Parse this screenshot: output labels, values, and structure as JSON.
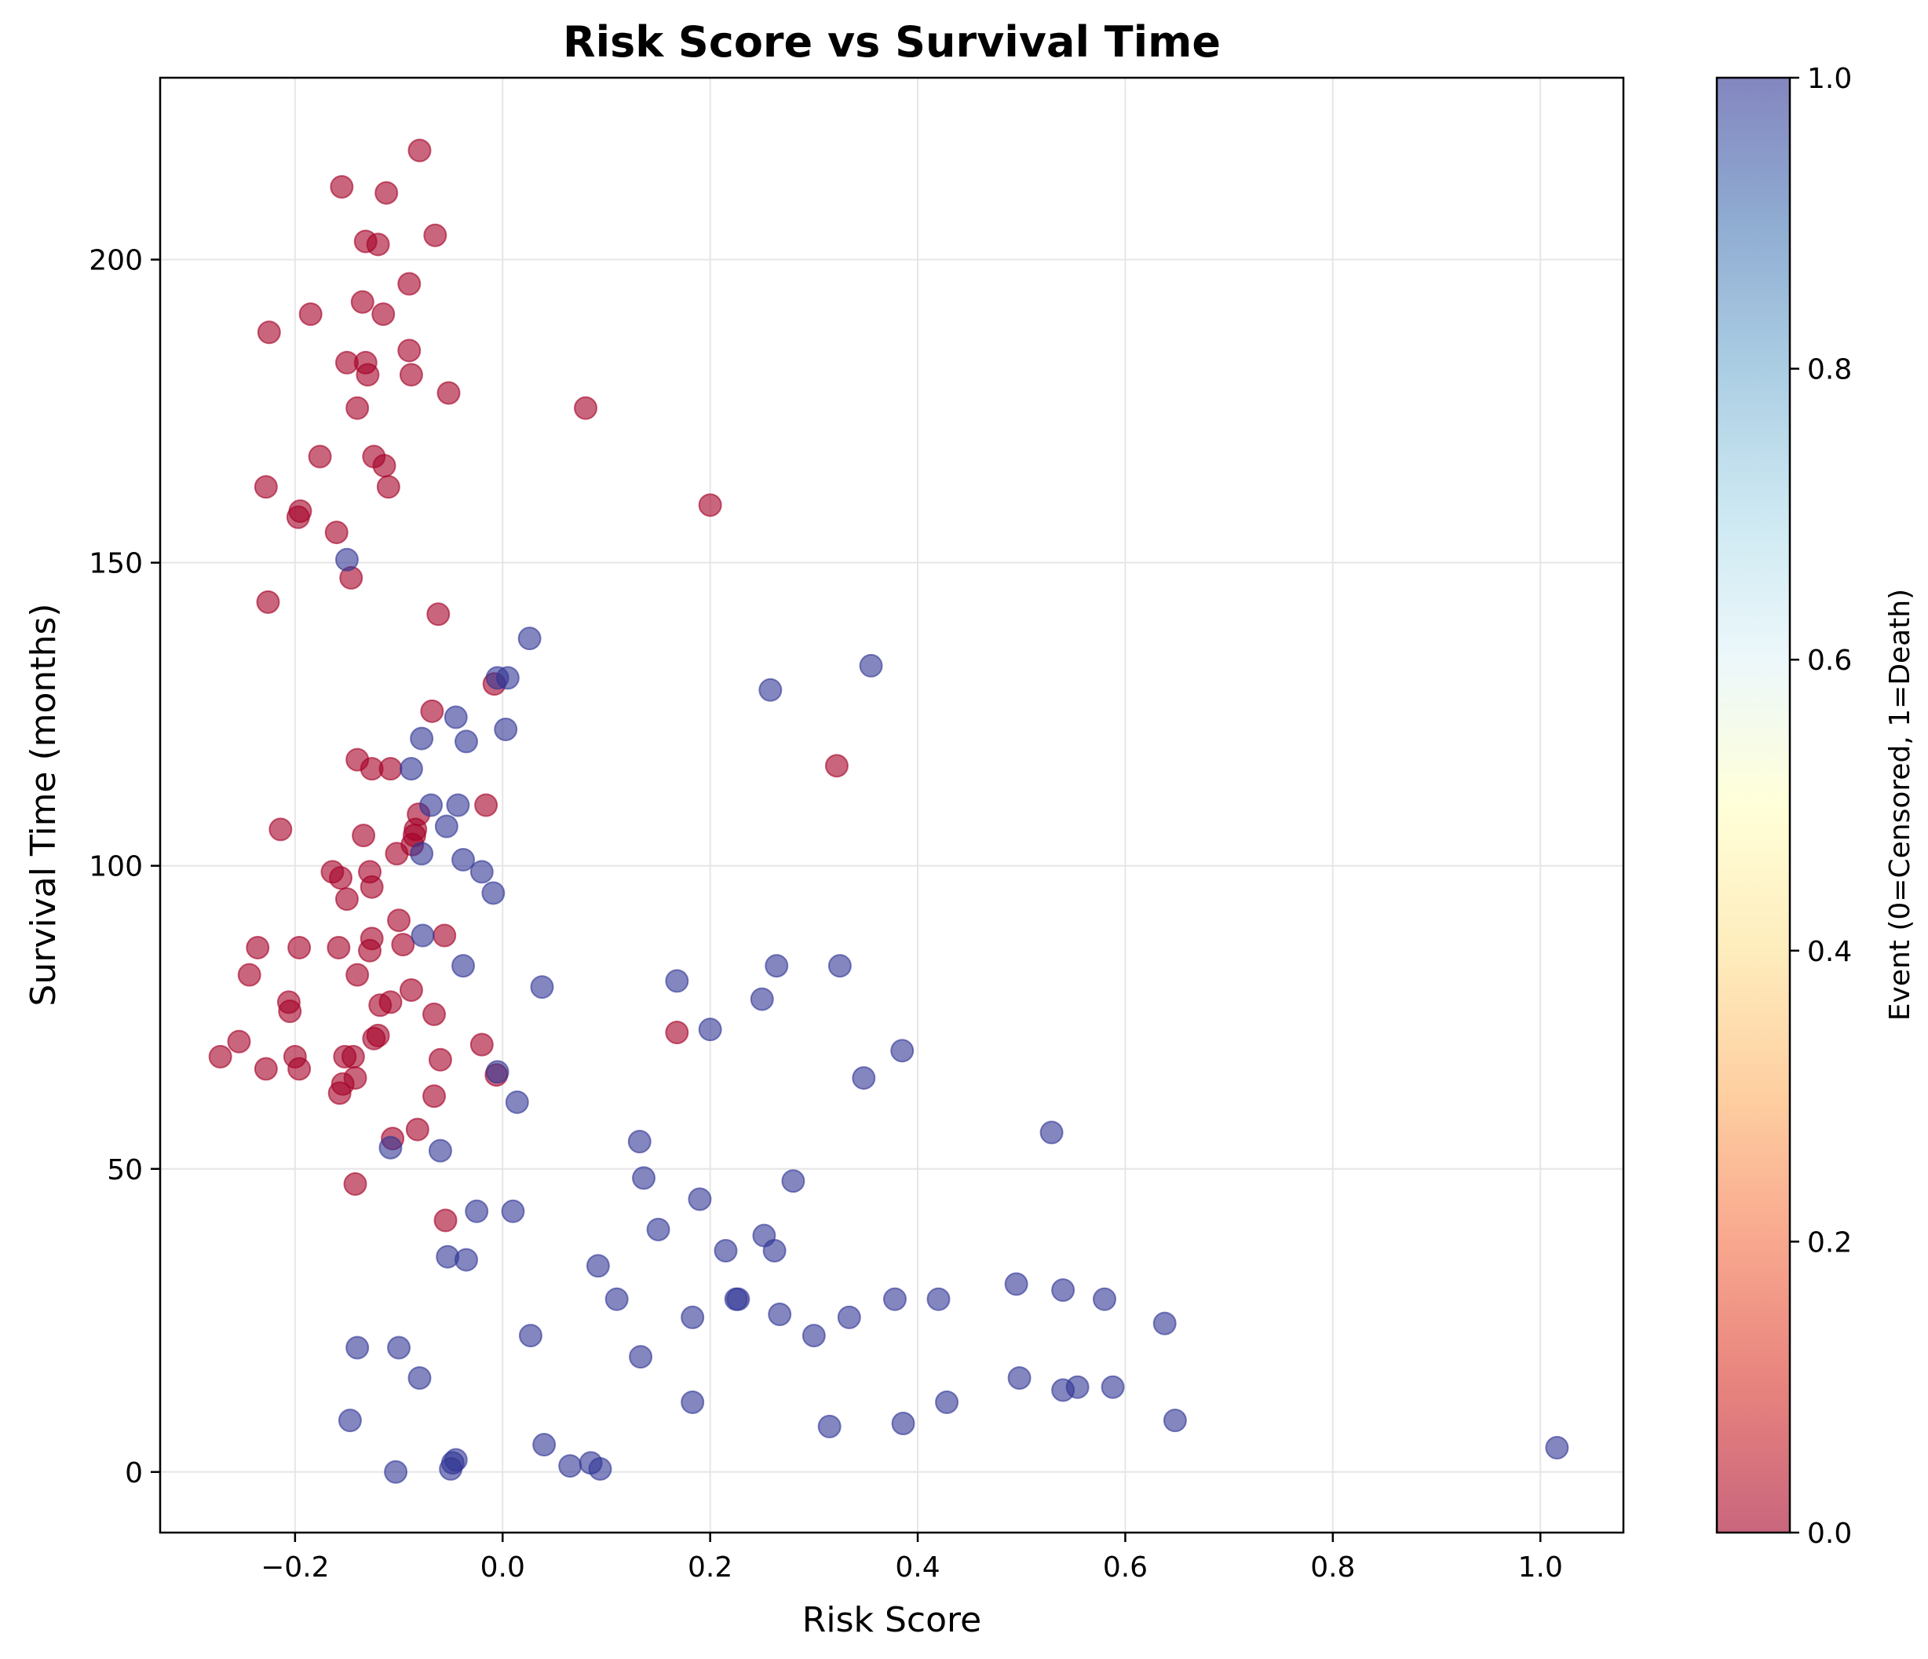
{
  "chart_data": {
    "type": "scatter",
    "title": "Risk Score vs Survival Time",
    "xlabel": "Risk Score",
    "ylabel": "Survival Time (months)",
    "xlim": [
      -0.33,
      1.08
    ],
    "ylim": [
      -10,
      230
    ],
    "grid": true,
    "xticks": [
      -0.2,
      0.0,
      0.2,
      0.4,
      0.6,
      0.8,
      1.0
    ],
    "xtick_labels": [
      "−0.2",
      "0.0",
      "0.2",
      "0.4",
      "0.6",
      "0.8",
      "1.0"
    ],
    "yticks": [
      0,
      50,
      100,
      150,
      200
    ],
    "ytick_labels": [
      "0",
      "50",
      "100",
      "150",
      "200"
    ],
    "colorbar": {
      "label": "Event (0=Censored, 1=Death)",
      "range": [
        0,
        1
      ],
      "ticks": [
        0.0,
        0.2,
        0.4,
        0.6,
        0.8,
        1.0
      ],
      "tick_labels": [
        "0.0",
        "0.2",
        "0.4",
        "0.6",
        "0.8",
        "1.0"
      ],
      "colormap": "RdYlBu",
      "alpha": 0.6,
      "stops": [
        "#a50026",
        "#d73027",
        "#f46d43",
        "#fdae61",
        "#fee090",
        "#ffffbf",
        "#e0f3f8",
        "#abd9e9",
        "#74add1",
        "#4575b4",
        "#313695"
      ]
    },
    "series": [
      {
        "name": "Censored",
        "event": 0,
        "color": "#a50026",
        "points": [
          [
            -0.08,
            218
          ],
          [
            -0.155,
            212
          ],
          [
            -0.112,
            211
          ],
          [
            -0.132,
            203
          ],
          [
            -0.12,
            202.5
          ],
          [
            -0.065,
            204
          ],
          [
            -0.09,
            196
          ],
          [
            -0.135,
            193
          ],
          [
            -0.115,
            191
          ],
          [
            -0.185,
            191
          ],
          [
            -0.225,
            188
          ],
          [
            -0.09,
            185
          ],
          [
            -0.15,
            183
          ],
          [
            -0.132,
            183
          ],
          [
            -0.13,
            181
          ],
          [
            -0.088,
            181
          ],
          [
            -0.052,
            178
          ],
          [
            -0.14,
            175.5
          ],
          [
            0.08,
            175.5
          ],
          [
            -0.176,
            167.5
          ],
          [
            -0.124,
            167.5
          ],
          [
            -0.114,
            166
          ],
          [
            -0.11,
            162.5
          ],
          [
            -0.228,
            162.5
          ],
          [
            -0.195,
            158.5
          ],
          [
            -0.197,
            157.5
          ],
          [
            -0.16,
            155
          ],
          [
            0.2,
            159.5
          ],
          [
            -0.146,
            147.5
          ],
          [
            -0.226,
            143.5
          ],
          [
            -0.062,
            141.5
          ],
          [
            -0.008,
            130
          ],
          [
            -0.068,
            125.5
          ],
          [
            -0.14,
            117.5
          ],
          [
            -0.126,
            116
          ],
          [
            -0.108,
            116
          ],
          [
            0.322,
            116.5
          ],
          [
            -0.016,
            110
          ],
          [
            -0.081,
            108.5
          ],
          [
            -0.084,
            106
          ],
          [
            -0.214,
            106
          ],
          [
            -0.134,
            105
          ],
          [
            -0.085,
            105
          ],
          [
            -0.087,
            103.5
          ],
          [
            -0.102,
            102
          ],
          [
            -0.164,
            99
          ],
          [
            -0.128,
            99
          ],
          [
            -0.156,
            98
          ],
          [
            -0.126,
            96.5
          ],
          [
            -0.15,
            94.5
          ],
          [
            -0.1,
            91
          ],
          [
            -0.126,
            88
          ],
          [
            -0.056,
            88.5
          ],
          [
            -0.236,
            86.5
          ],
          [
            -0.196,
            86.5
          ],
          [
            -0.158,
            86.5
          ],
          [
            -0.128,
            86
          ],
          [
            -0.096,
            87
          ],
          [
            -0.244,
            82
          ],
          [
            -0.14,
            82
          ],
          [
            -0.088,
            79.5
          ],
          [
            -0.206,
            77.5
          ],
          [
            -0.108,
            77.5
          ],
          [
            -0.118,
            77
          ],
          [
            -0.205,
            76
          ],
          [
            -0.066,
            75.5
          ],
          [
            -0.12,
            72
          ],
          [
            -0.124,
            71.5
          ],
          [
            -0.254,
            71
          ],
          [
            0.168,
            72.5
          ],
          [
            -0.02,
            70.5
          ],
          [
            -0.272,
            68.5
          ],
          [
            -0.2,
            68.5
          ],
          [
            -0.152,
            68.5
          ],
          [
            -0.144,
            68.5
          ],
          [
            -0.06,
            68
          ],
          [
            -0.228,
            66.5
          ],
          [
            -0.196,
            66.5
          ],
          [
            -0.006,
            65.5
          ],
          [
            -0.142,
            65
          ],
          [
            -0.154,
            64
          ],
          [
            -0.157,
            62.5
          ],
          [
            -0.066,
            62
          ],
          [
            -0.082,
            56.5
          ],
          [
            -0.106,
            55
          ],
          [
            -0.142,
            47.5
          ],
          [
            -0.055,
            41.5
          ]
        ]
      },
      {
        "name": "Death",
        "event": 1,
        "color": "#313695",
        "points": [
          [
            -0.15,
            150.5
          ],
          [
            0.026,
            137.5
          ],
          [
            0.355,
            133
          ],
          [
            -0.005,
            131
          ],
          [
            0.005,
            131
          ],
          [
            0.258,
            129
          ],
          [
            -0.045,
            124.5
          ],
          [
            0.003,
            122.5
          ],
          [
            -0.078,
            121
          ],
          [
            -0.035,
            120.5
          ],
          [
            -0.088,
            116
          ],
          [
            -0.069,
            110
          ],
          [
            -0.043,
            110
          ],
          [
            -0.054,
            106.5
          ],
          [
            -0.078,
            102
          ],
          [
            -0.038,
            101
          ],
          [
            -0.02,
            99
          ],
          [
            -0.009,
            95.5
          ],
          [
            -0.077,
            88.5
          ],
          [
            -0.038,
            83.5
          ],
          [
            0.264,
            83.5
          ],
          [
            0.325,
            83.5
          ],
          [
            0.038,
            80
          ],
          [
            0.168,
            81
          ],
          [
            0.25,
            78
          ],
          [
            0.2,
            73
          ],
          [
            0.385,
            69.5
          ],
          [
            -0.005,
            66
          ],
          [
            0.348,
            65
          ],
          [
            0.014,
            61
          ],
          [
            0.529,
            56
          ],
          [
            -0.108,
            53.5
          ],
          [
            -0.06,
            53
          ],
          [
            0.132,
            54.5
          ],
          [
            0.136,
            48.5
          ],
          [
            0.28,
            48
          ],
          [
            0.19,
            45
          ],
          [
            -0.025,
            43
          ],
          [
            0.01,
            43
          ],
          [
            0.15,
            40
          ],
          [
            0.252,
            39
          ],
          [
            0.215,
            36.5
          ],
          [
            0.262,
            36.5
          ],
          [
            -0.053,
            35.5
          ],
          [
            -0.035,
            35
          ],
          [
            0.092,
            34
          ],
          [
            0.11,
            28.5
          ],
          [
            0.225,
            28.5
          ],
          [
            0.227,
            28.5
          ],
          [
            0.378,
            28.5
          ],
          [
            0.42,
            28.5
          ],
          [
            0.58,
            28.5
          ],
          [
            0.54,
            30
          ],
          [
            0.495,
            31
          ],
          [
            0.183,
            25.5
          ],
          [
            0.267,
            26
          ],
          [
            0.334,
            25.5
          ],
          [
            0.638,
            24.5
          ],
          [
            0.027,
            22.5
          ],
          [
            0.3,
            22.5
          ],
          [
            -0.14,
            20.5
          ],
          [
            -0.1,
            20.5
          ],
          [
            0.133,
            19
          ],
          [
            -0.08,
            15.5
          ],
          [
            0.498,
            15.5
          ],
          [
            0.54,
            13.5
          ],
          [
            0.554,
            14
          ],
          [
            0.588,
            14
          ],
          [
            0.183,
            11.5
          ],
          [
            0.428,
            11.5
          ],
          [
            -0.147,
            8.5
          ],
          [
            0.315,
            7.5
          ],
          [
            0.386,
            8
          ],
          [
            0.648,
            8.5
          ],
          [
            0.04,
            4.5
          ],
          [
            1.016,
            4
          ],
          [
            -0.045,
            2
          ],
          [
            -0.048,
            1.5
          ],
          [
            0.065,
            1
          ],
          [
            0.085,
            1.5
          ],
          [
            0.094,
            0.5
          ],
          [
            -0.103,
            0
          ],
          [
            -0.05,
            0.5
          ]
        ]
      }
    ]
  }
}
